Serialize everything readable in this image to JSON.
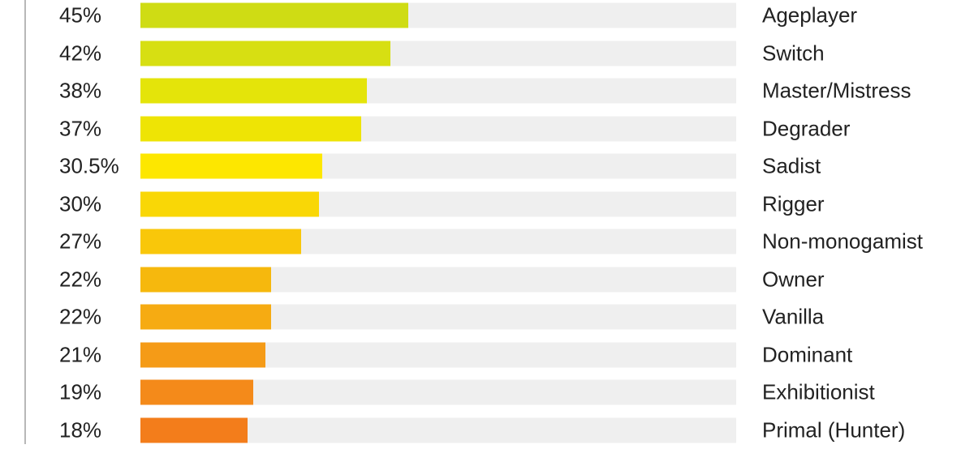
{
  "chart_data": {
    "type": "bar",
    "orientation": "horizontal",
    "title": "",
    "xlabel": "",
    "ylabel": "",
    "xlim": [
      0,
      100
    ],
    "categories": [
      "Ageplayer",
      "Switch",
      "Master/Mistress",
      "Degrader",
      "Sadist",
      "Rigger",
      "Non-monogamist",
      "Owner",
      "Vanilla",
      "Dominant",
      "Exhibitionist",
      "Primal (Hunter)"
    ],
    "values": [
      45,
      42,
      38,
      37,
      30.5,
      30,
      27,
      22,
      22,
      21,
      19,
      18
    ],
    "value_labels": [
      "45%",
      "42%",
      "38%",
      "37%",
      "30.5%",
      "30%",
      "27%",
      "22%",
      "22%",
      "21%",
      "19%",
      "18%"
    ],
    "colors": [
      "#cfdc14",
      "#d7df12",
      "#e4e40a",
      "#eee405",
      "#fde700",
      "#f9d706",
      "#f9c70a",
      "#f6b80d",
      "#f6ab12",
      "#f59b17",
      "#f48a1a",
      "#f37d1b"
    ],
    "track_color": "#efefef",
    "grid": false,
    "legend": "none"
  }
}
